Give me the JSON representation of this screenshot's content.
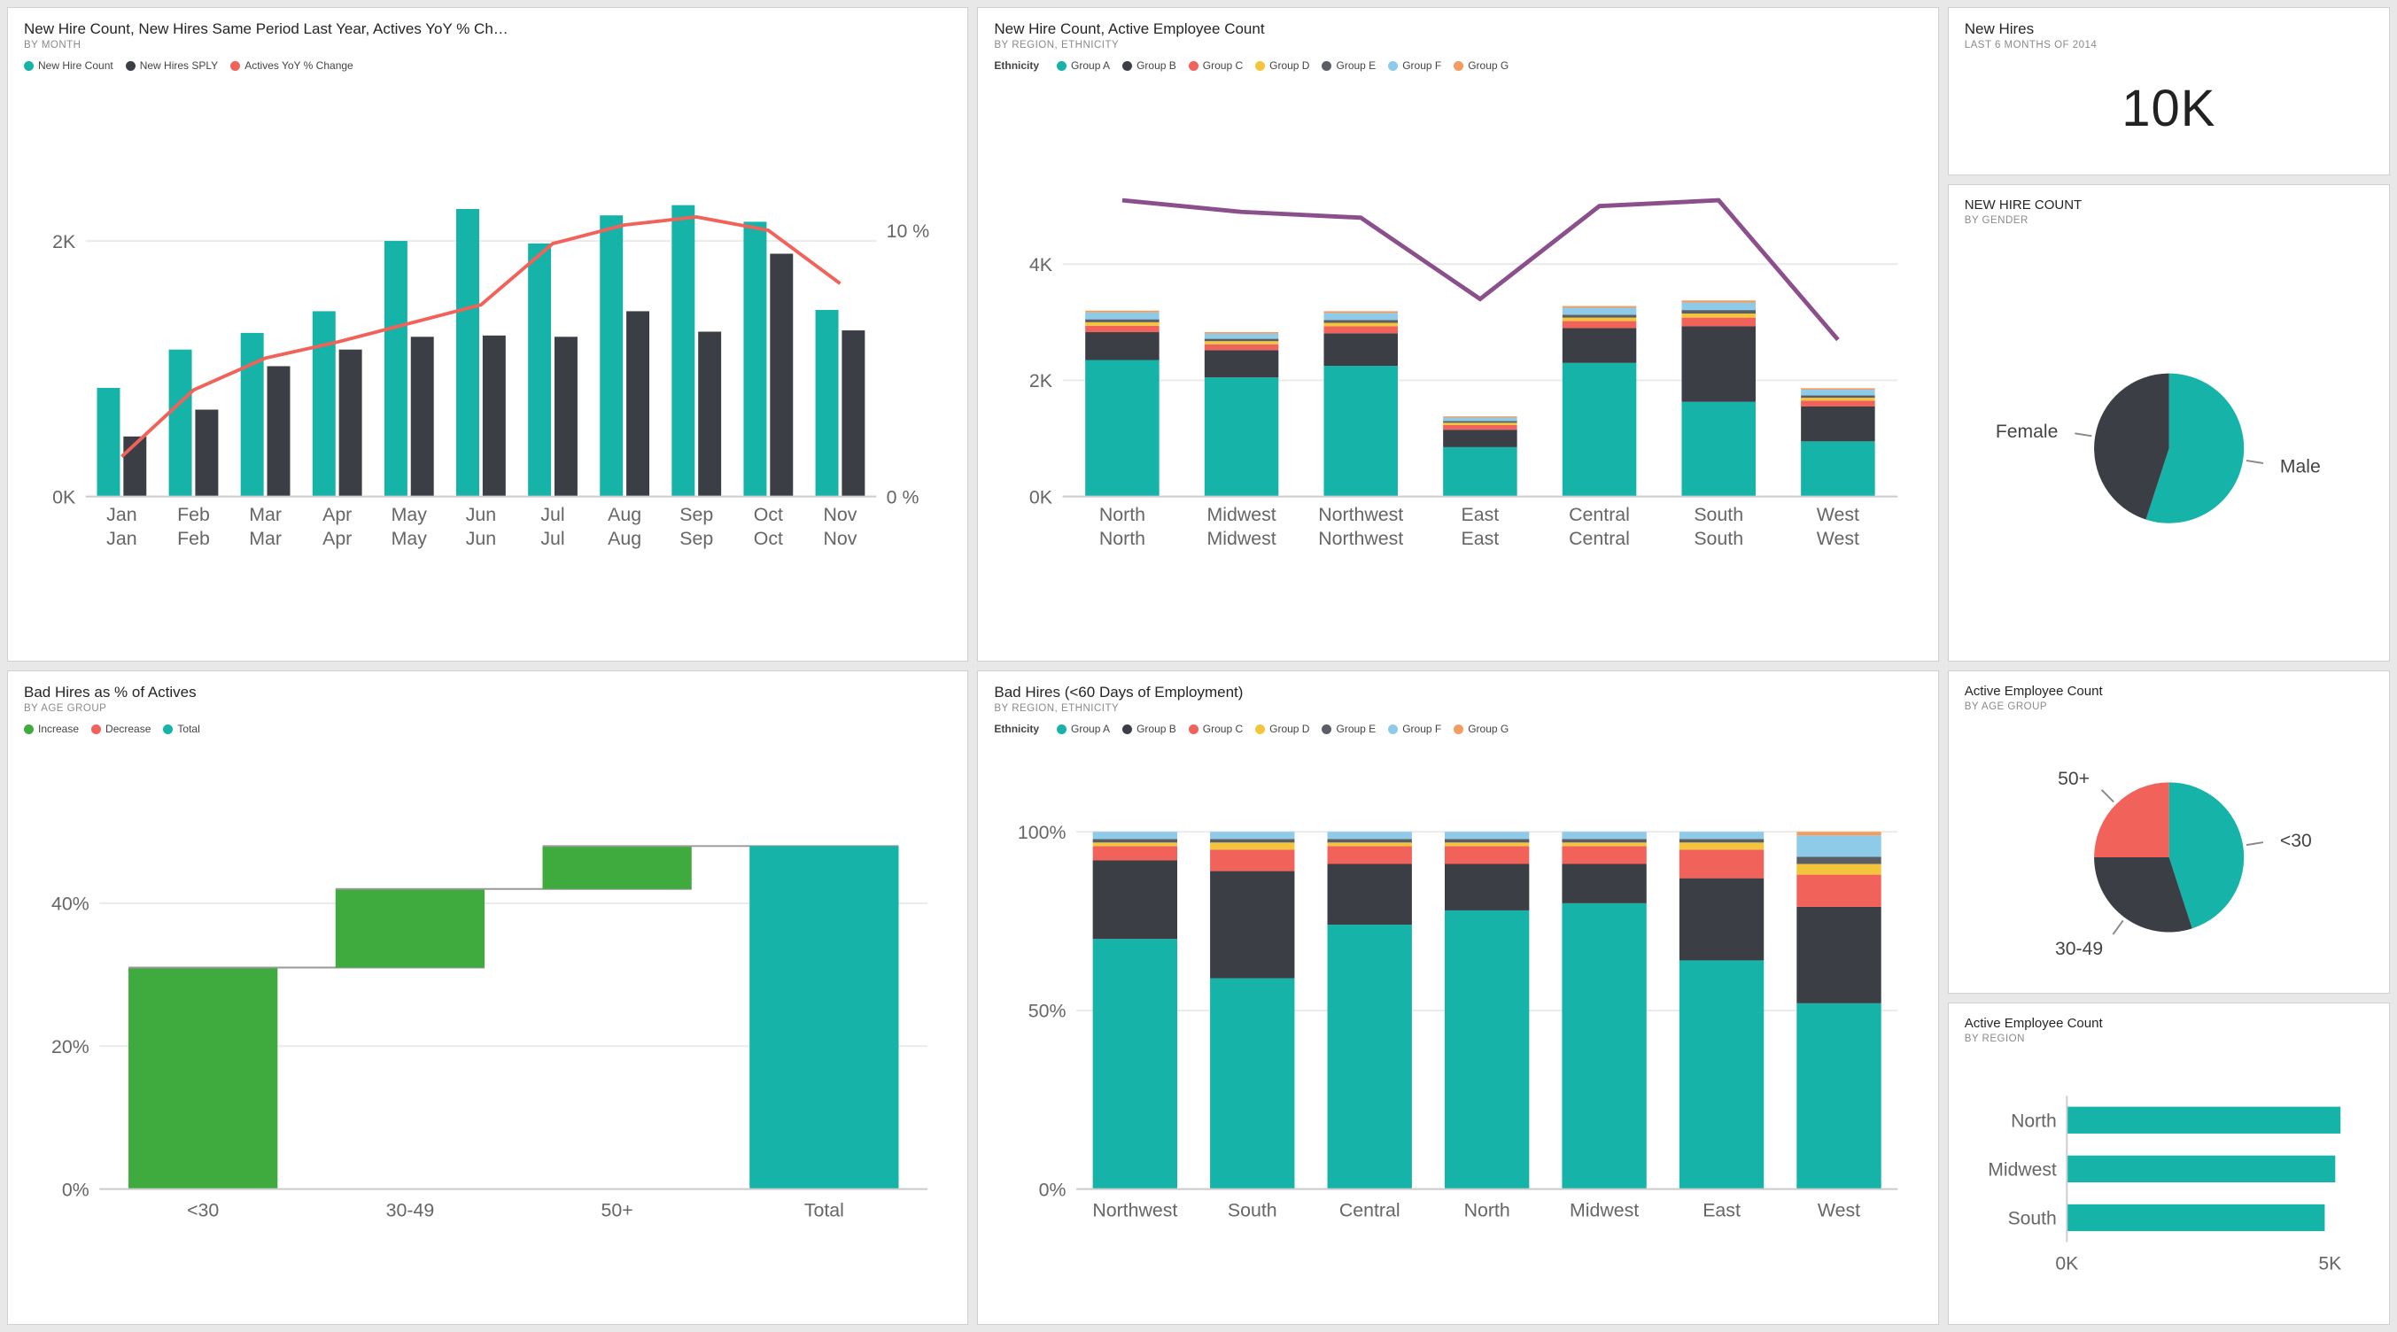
{
  "colors": {
    "teal": "#16b3a8",
    "dark": "#3b3f45",
    "red": "#f1625a",
    "coral": "#f47b5e",
    "yellow": "#f3c43c",
    "darkgrey": "#5b5f65",
    "lightblue": "#8ecbe8",
    "orange": "#f49b5e",
    "green": "#3fab3f",
    "purple": "#8b4f8b",
    "axis": "#666666",
    "grid": "#eaeaea"
  },
  "chart1": {
    "title": "New Hire Count, New Hires Same Period Last Year, Actives YoY % Ch…",
    "subtitle": "BY MONTH",
    "legend": [
      {
        "label": "New Hire Count",
        "color": "#16b3a8"
      },
      {
        "label": "New Hires SPLY",
        "color": "#3b3f45"
      },
      {
        "label": "Actives YoY % Change",
        "color": "#f1625a"
      }
    ],
    "months": [
      "Jan",
      "Feb",
      "Mar",
      "Apr",
      "May",
      "Jun",
      "Jul",
      "Aug",
      "Sep",
      "Oct",
      "Nov"
    ],
    "xlabels2": [
      "Jan",
      "Feb",
      "Mar",
      "Apr",
      "May",
      "Jun",
      "Jul",
      "Aug",
      "Sep",
      "Oct",
      "Nov"
    ],
    "new_hire": [
      850,
      1150,
      1280,
      1450,
      2000,
      2250,
      1980,
      2200,
      2280,
      2150,
      1460
    ],
    "sply": [
      470,
      680,
      1020,
      1150,
      1250,
      1260,
      1250,
      1450,
      1290,
      1900,
      1300
    ],
    "yoy_pct": [
      1.5,
      4.0,
      5.2,
      5.8,
      6.5,
      7.2,
      9.5,
      10.2,
      10.5,
      10.0,
      8.0
    ],
    "y_left": {
      "min": 0,
      "max": 2500,
      "ticks": [
        0,
        2000
      ],
      "tick_labels": [
        "0K",
        "2K"
      ]
    },
    "y_right": {
      "min": 0,
      "max": 12,
      "ticks": [
        0,
        10
      ],
      "tick_labels": [
        "0 %",
        "10 %"
      ]
    }
  },
  "chart2": {
    "title": "New Hire Count, Active Employee Count",
    "subtitle": "BY REGION, ETHNICITY",
    "legend_label": "Ethnicity",
    "groups": [
      {
        "label": "Group A",
        "color": "#16b3a8"
      },
      {
        "label": "Group B",
        "color": "#3b3f45"
      },
      {
        "label": "Group C",
        "color": "#f1625a"
      },
      {
        "label": "Group D",
        "color": "#f3c43c"
      },
      {
        "label": "Group E",
        "color": "#5b5f65"
      },
      {
        "label": "Group F",
        "color": "#8ecbe8"
      },
      {
        "label": "Group G",
        "color": "#f49b5e"
      }
    ],
    "regions": [
      "North",
      "Midwest",
      "Northwest",
      "East",
      "Central",
      "South",
      "West"
    ],
    "xlabels2": [
      "North",
      "Midwest",
      "Northwest",
      "East",
      "Central",
      "South",
      "West"
    ],
    "stacks": [
      [
        2350,
        480,
        110,
        60,
        50,
        120,
        30
      ],
      [
        2050,
        470,
        100,
        55,
        40,
        90,
        25
      ],
      [
        2250,
        560,
        120,
        60,
        50,
        120,
        30
      ],
      [
        850,
        300,
        80,
        40,
        30,
        60,
        20
      ],
      [
        2300,
        600,
        120,
        60,
        50,
        120,
        30
      ],
      [
        1630,
        1300,
        150,
        70,
        60,
        130,
        35
      ],
      [
        950,
        600,
        100,
        50,
        40,
        100,
        25
      ]
    ],
    "line": [
      5100,
      4900,
      4800,
      3400,
      5000,
      5100,
      2700
    ],
    "line_color": "#8b4f8b",
    "y": {
      "min": 0,
      "max": 5500,
      "ticks": [
        0,
        2000,
        4000
      ],
      "tick_labels": [
        "0K",
        "2K",
        "4K"
      ]
    }
  },
  "card_kpi": {
    "title": "New Hires",
    "subtitle": "LAST 6 MONTHS OF 2014",
    "value": "10K"
  },
  "pie_gender": {
    "title": "NEW HIRE COUNT",
    "subtitle": "BY GENDER",
    "slices": [
      {
        "label": "Male",
        "value": 55,
        "color": "#16b3a8"
      },
      {
        "label": "Female",
        "value": 45,
        "color": "#3b3f45"
      }
    ]
  },
  "chart3": {
    "title": "Bad Hires as % of Actives",
    "subtitle": "BY AGE GROUP",
    "legend": [
      {
        "label": "Increase",
        "color": "#3fab3f"
      },
      {
        "label": "Decrease",
        "color": "#f1625a"
      },
      {
        "label": "Total",
        "color": "#16b3a8"
      }
    ],
    "categories": [
      "<30",
      "30-49",
      "50+",
      "Total"
    ],
    "bars": [
      {
        "start": 0,
        "end": 31,
        "color": "#3fab3f"
      },
      {
        "start": 31,
        "end": 42,
        "color": "#3fab3f"
      },
      {
        "start": 42,
        "end": 48,
        "color": "#3fab3f"
      },
      {
        "start": 0,
        "end": 48,
        "color": "#16b3a8"
      }
    ],
    "y": {
      "min": 0,
      "max": 50,
      "ticks": [
        0,
        20,
        40
      ],
      "tick_labels": [
        "0%",
        "20%",
        "40%"
      ]
    }
  },
  "chart4": {
    "title": "Bad Hires (<60 Days of Employment)",
    "subtitle": "BY REGION, ETHNICITY",
    "legend_label": "Ethnicity",
    "groups": [
      {
        "label": "Group A",
        "color": "#16b3a8"
      },
      {
        "label": "Group B",
        "color": "#3b3f45"
      },
      {
        "label": "Group C",
        "color": "#f1625a"
      },
      {
        "label": "Group D",
        "color": "#f3c43c"
      },
      {
        "label": "Group E",
        "color": "#5b5f65"
      },
      {
        "label": "Group F",
        "color": "#8ecbe8"
      },
      {
        "label": "Group G",
        "color": "#f49b5e"
      }
    ],
    "regions": [
      "Northwest",
      "South",
      "Central",
      "North",
      "Midwest",
      "East",
      "West"
    ],
    "stacks_pct": [
      [
        70,
        22,
        4,
        1,
        1,
        2,
        0
      ],
      [
        59,
        30,
        6,
        2,
        1,
        2,
        0
      ],
      [
        74,
        17,
        5,
        1,
        1,
        2,
        0
      ],
      [
        78,
        13,
        5,
        1,
        1,
        2,
        0
      ],
      [
        80,
        11,
        5,
        1,
        1,
        2,
        0
      ],
      [
        64,
        23,
        8,
        2,
        1,
        2,
        0
      ],
      [
        52,
        27,
        9,
        3,
        2,
        6,
        1
      ]
    ],
    "y": {
      "min": 0,
      "max": 100,
      "ticks": [
        0,
        50,
        100
      ],
      "tick_labels": [
        "0%",
        "50%",
        "100%"
      ]
    }
  },
  "pie_age": {
    "title": "Active Employee Count",
    "subtitle": "BY AGE GROUP",
    "slices": [
      {
        "label": "<30",
        "value": 45,
        "color": "#16b3a8"
      },
      {
        "label": "30-49",
        "value": 30,
        "color": "#3b3f45"
      },
      {
        "label": "50+",
        "value": 25,
        "color": "#f1625a"
      }
    ]
  },
  "bar_region": {
    "title": "Active Employee Count",
    "subtitle": "BY REGION",
    "categories": [
      "North",
      "Midwest",
      "South"
    ],
    "values": [
      5200,
      5100,
      4900
    ],
    "x": {
      "min": 0,
      "max": 5500,
      "ticks": [
        0,
        5000
      ],
      "tick_labels": [
        "0K",
        "5K"
      ]
    },
    "color": "#16b3a8"
  }
}
